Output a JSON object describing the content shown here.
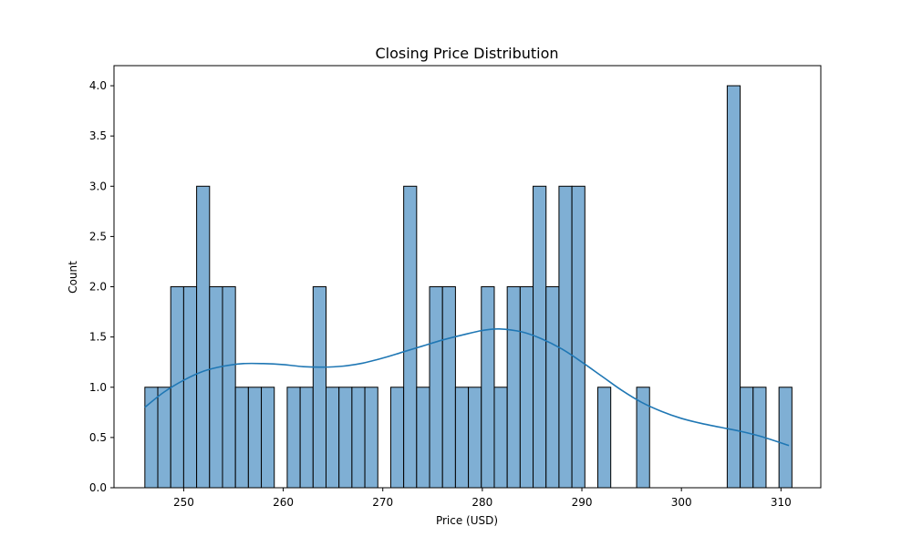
{
  "chart_data": {
    "type": "bar",
    "subtype": "histogram-with-kde",
    "title": "Closing Price Distribution",
    "xlabel": "Price (USD)",
    "ylabel": "Count",
    "xlim": [
      243.0,
      314.0
    ],
    "ylim": [
      0,
      4.2
    ],
    "xticks": [
      250,
      260,
      270,
      280,
      290,
      300,
      310
    ],
    "yticks": [
      0.0,
      0.5,
      1.0,
      1.5,
      2.0,
      2.5,
      3.0,
      3.5,
      4.0
    ],
    "grid": false,
    "bin_start": 246.1,
    "bin_width": 1.3,
    "counts": [
      1,
      1,
      2,
      2,
      3,
      2,
      2,
      1,
      1,
      1,
      0,
      1,
      1,
      2,
      1,
      1,
      1,
      1,
      0,
      1,
      3,
      1,
      2,
      2,
      1,
      1,
      2,
      1,
      2,
      2,
      3,
      2,
      3,
      3,
      0,
      1,
      0,
      0,
      1,
      0,
      0,
      0,
      0,
      0,
      0,
      4,
      1,
      1,
      0,
      1
    ],
    "bar_color": "#7fafd4",
    "bar_edge_color": "#000000",
    "kde_color": "#1f77b4",
    "kde": {
      "x": [
        246.1,
        248,
        250,
        252,
        254,
        256,
        258,
        260,
        262,
        264,
        266,
        268,
        270,
        272,
        274,
        276,
        278,
        280,
        281.7,
        284,
        286,
        288,
        290,
        292,
        294,
        296,
        298,
        300,
        302,
        304,
        306,
        308,
        310.8
      ],
      "y": [
        0.8,
        0.95,
        1.07,
        1.16,
        1.21,
        1.235,
        1.235,
        1.225,
        1.205,
        1.2,
        1.21,
        1.24,
        1.29,
        1.35,
        1.41,
        1.47,
        1.52,
        1.565,
        1.58,
        1.55,
        1.48,
        1.38,
        1.25,
        1.11,
        0.97,
        0.85,
        0.76,
        0.69,
        0.64,
        0.6,
        0.56,
        0.51,
        0.42
      ]
    }
  }
}
